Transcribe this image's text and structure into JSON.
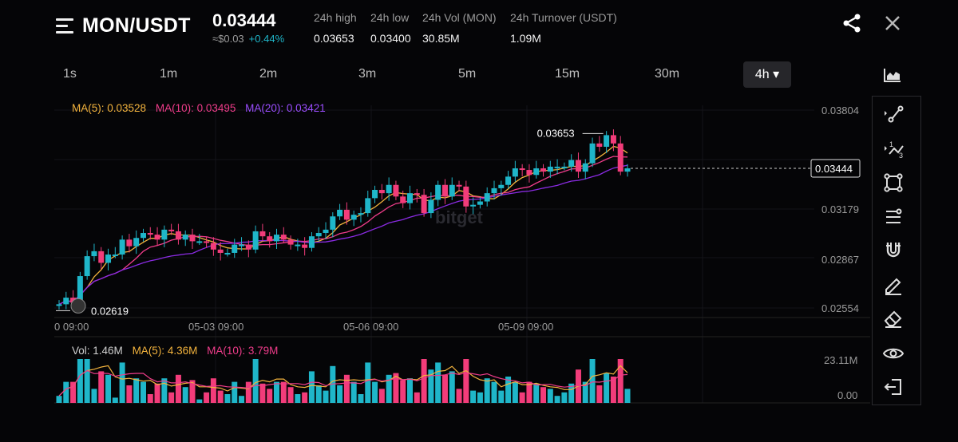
{
  "header": {
    "pair": "MON/USDT",
    "price": "0.03444",
    "price_usd": "≈$0.03",
    "change": "+0.44%",
    "stats": [
      {
        "label": "24h high",
        "value": "0.03653"
      },
      {
        "label": "24h low",
        "value": "0.03400"
      },
      {
        "label": "24h Vol (MON)",
        "value": "30.85M"
      },
      {
        "label": "24h Turnover (USDT)",
        "value": "1.09M"
      }
    ]
  },
  "timeframes": [
    "1s",
    "1m",
    "2m",
    "3m",
    "5m",
    "15m",
    "30m"
  ],
  "active_timeframe": "4h ▾",
  "legend": {
    "ma5": "MA(5): 0.03528",
    "ma10": "MA(10): 0.03495",
    "ma20": "MA(20): 0.03421",
    "vol": "Vol: 1.46M",
    "vol_ma5": "MA(5): 4.36M",
    "vol_ma10": "MA(10): 3.79M"
  },
  "price_axis": [
    "0.03804",
    "0.03179",
    "0.02867",
    "0.02554"
  ],
  "current_price_tag": "0.03444",
  "high_label": "0.03653",
  "low_label": "0.02619",
  "time_axis": [
    "0 09:00",
    "05-03 09:00",
    "05-06 09:00",
    "05-09 09:00"
  ],
  "volume_axis": [
    "23.11M",
    "0.00"
  ],
  "watermark": "bitget",
  "colors": {
    "up": "#1fb6c9",
    "down": "#f23c7a",
    "ma5": "#f3b33d",
    "ma10": "#ef3c8a",
    "ma20": "#8a2be2",
    "background": "#050507"
  },
  "tools": [
    "trend-line-icon",
    "fib-icon",
    "rectangle-icon",
    "horizontal-line-icon",
    "magnet-icon",
    "pencil-icon",
    "eraser-icon",
    "eye-icon",
    "exit-icon"
  ],
  "chart_data": {
    "type": "candlestick",
    "price_range": [
      0.0255,
      0.0383
    ],
    "closes": [
      0.0263,
      0.0267,
      0.0264,
      0.028,
      0.0292,
      0.0295,
      0.0288,
      0.0293,
      0.0293,
      0.0302,
      0.0298,
      0.0303,
      0.0306,
      0.0305,
      0.0302,
      0.0308,
      0.0307,
      0.0302,
      0.0305,
      0.0301,
      0.0301,
      0.03,
      0.0296,
      0.0294,
      0.0294,
      0.0299,
      0.0299,
      0.0296,
      0.0307,
      0.0304,
      0.0301,
      0.0305,
      0.0302,
      0.0299,
      0.0299,
      0.0297,
      0.0304,
      0.0306,
      0.0308,
      0.0316,
      0.032,
      0.0314,
      0.0317,
      0.0318,
      0.0327,
      0.0332,
      0.033,
      0.0335,
      0.0328,
      0.0324,
      0.033,
      0.0329,
      0.0318,
      0.0326,
      0.0335,
      0.0328,
      0.0335,
      0.0334,
      0.0322,
      0.0323,
      0.0325,
      0.033,
      0.0333,
      0.0335,
      0.034,
      0.0345,
      0.0344,
      0.0341,
      0.0345,
      0.0343,
      0.0346,
      0.0346,
      0.0346,
      0.035,
      0.0343,
      0.0348,
      0.036,
      0.0358,
      0.0365,
      0.036,
      0.0343,
      0.0345
    ],
    "volume_range": [
      0,
      23.11
    ]
  }
}
